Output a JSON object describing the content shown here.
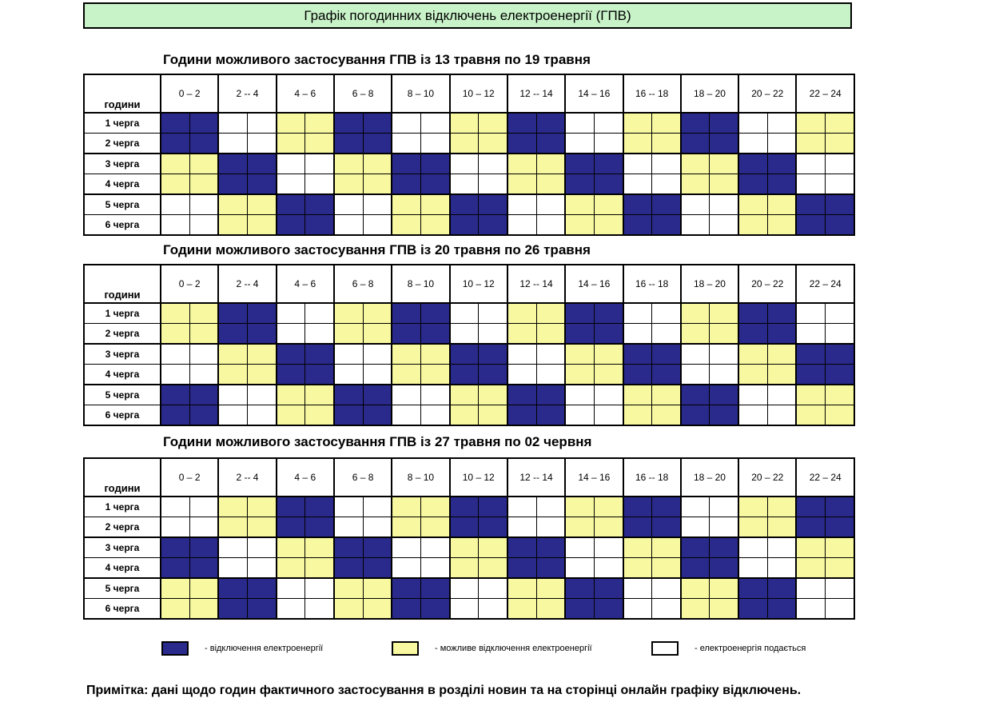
{
  "title": "Графік погодинних відключень електроенергії (ГПВ)",
  "header_label": "години",
  "ranges": [
    "0 – 2",
    "2 -- 4",
    "4 – 6",
    "6 – 8",
    "8 – 10",
    "10 – 12",
    "12 -- 14",
    "14 – 16",
    "16 -- 18",
    "18 – 20",
    "20 – 22",
    "22 – 24"
  ],
  "queues": [
    "1 черга",
    "2 черга",
    "3 черга",
    "4 черга",
    "5 черга",
    "6 черга"
  ],
  "colors": {
    "off": "#2a2a8c",
    "maybe": "#f8f8a0",
    "on": "#ffffff"
  },
  "sections": [
    {
      "title": "Години можливого застосування ГПВ із 13 травня по 19 травня",
      "rows": [
        [
          "off",
          "on",
          "maybe",
          "off",
          "on",
          "maybe",
          "off",
          "on",
          "maybe",
          "off",
          "on",
          "maybe"
        ],
        [
          "off",
          "on",
          "maybe",
          "off",
          "on",
          "maybe",
          "off",
          "on",
          "maybe",
          "off",
          "on",
          "maybe"
        ],
        [
          "maybe",
          "off",
          "on",
          "maybe",
          "off",
          "on",
          "maybe",
          "off",
          "on",
          "maybe",
          "off",
          "on"
        ],
        [
          "maybe",
          "off",
          "on",
          "maybe",
          "off",
          "on",
          "maybe",
          "off",
          "on",
          "maybe",
          "off",
          "on"
        ],
        [
          "on",
          "maybe",
          "off",
          "on",
          "maybe",
          "off",
          "on",
          "maybe",
          "off",
          "on",
          "maybe",
          "off"
        ],
        [
          "on",
          "maybe",
          "off",
          "on",
          "maybe",
          "off",
          "on",
          "maybe",
          "off",
          "on",
          "maybe",
          "off"
        ]
      ]
    },
    {
      "title": "Години можливого застосування ГПВ із 20 травня по 26 травня",
      "rows": [
        [
          "maybe",
          "off",
          "on",
          "maybe",
          "off",
          "on",
          "maybe",
          "off",
          "on",
          "maybe",
          "off",
          "on"
        ],
        [
          "maybe",
          "off",
          "on",
          "maybe",
          "off",
          "on",
          "maybe",
          "off",
          "on",
          "maybe",
          "off",
          "on"
        ],
        [
          "on",
          "maybe",
          "off",
          "on",
          "maybe",
          "off",
          "on",
          "maybe",
          "off",
          "on",
          "maybe",
          "off"
        ],
        [
          "on",
          "maybe",
          "off",
          "on",
          "maybe",
          "off",
          "on",
          "maybe",
          "off",
          "on",
          "maybe",
          "off"
        ],
        [
          "off",
          "on",
          "maybe",
          "off",
          "on",
          "maybe",
          "off",
          "on",
          "maybe",
          "off",
          "on",
          "maybe"
        ],
        [
          "off",
          "on",
          "maybe",
          "off",
          "on",
          "maybe",
          "off",
          "on",
          "maybe",
          "off",
          "on",
          "maybe"
        ]
      ]
    },
    {
      "title": "Години можливого застосування ГПВ із 27 травня по 02 червня",
      "rows": [
        [
          "on",
          "maybe",
          "off",
          "on",
          "maybe",
          "off",
          "on",
          "maybe",
          "off",
          "on",
          "maybe",
          "off"
        ],
        [
          "on",
          "maybe",
          "off",
          "on",
          "maybe",
          "off",
          "on",
          "maybe",
          "off",
          "on",
          "maybe",
          "off"
        ],
        [
          "off",
          "on",
          "maybe",
          "off",
          "on",
          "maybe",
          "off",
          "on",
          "maybe",
          "off",
          "on",
          "maybe"
        ],
        [
          "off",
          "on",
          "maybe",
          "off",
          "on",
          "maybe",
          "off",
          "on",
          "maybe",
          "off",
          "on",
          "maybe"
        ],
        [
          "maybe",
          "off",
          "on",
          "maybe",
          "off",
          "on",
          "maybe",
          "off",
          "on",
          "maybe",
          "off",
          "on"
        ],
        [
          "maybe",
          "off",
          "on",
          "maybe",
          "off",
          "on",
          "maybe",
          "off",
          "on",
          "maybe",
          "off",
          "on"
        ]
      ]
    }
  ],
  "legend": {
    "off": "- відключення електроенергії",
    "maybe": "- можливе відключення електроенергії",
    "on": "- електроенергія подається"
  },
  "note": "Примітка: дані щодо годин фактичного застосування в розділі новин та на сторінці онлайн графіку відключень."
}
